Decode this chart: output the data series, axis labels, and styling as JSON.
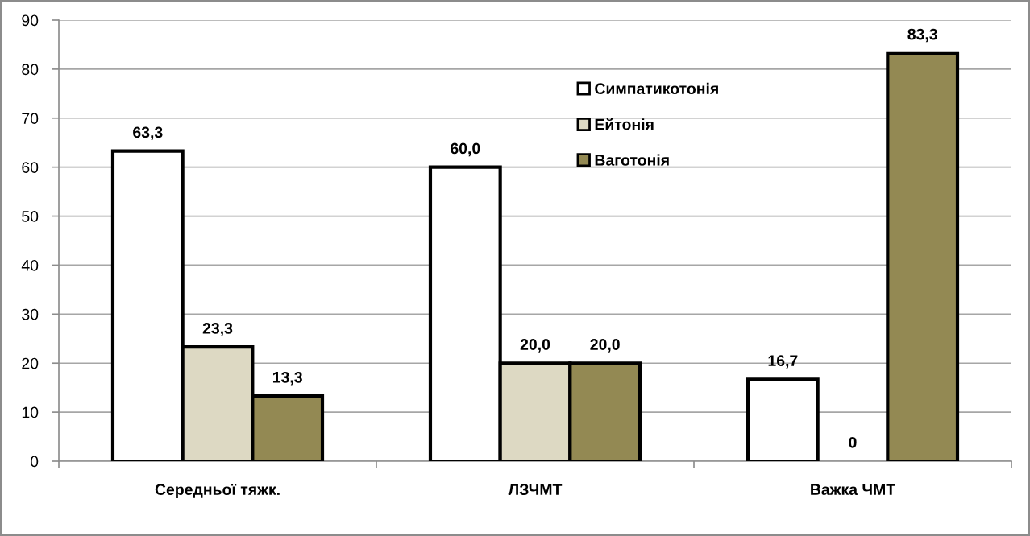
{
  "chart_data": {
    "type": "bar",
    "categories": [
      "Середньої тяжк.",
      "ЛЗЧМТ",
      "Важка ЧМТ"
    ],
    "series": [
      {
        "name": "Симпатикотонія",
        "color": "#ffffff",
        "values": [
          63.3,
          60.0,
          16.7
        ],
        "value_labels": [
          "63,3",
          "60,0",
          "16,7"
        ]
      },
      {
        "name": "Ейтонія",
        "color": "#ddd9c3",
        "values": [
          23.3,
          20.0,
          0
        ],
        "value_labels": [
          "23,3",
          "20,0",
          "0"
        ]
      },
      {
        "name": "Ваготонія",
        "color": "#938953",
        "values": [
          13.3,
          20.0,
          83.3
        ],
        "value_labels": [
          "13,3",
          "20,0",
          "83,3"
        ]
      }
    ],
    "ylim": [
      0,
      90
    ],
    "yticks": [
      0,
      10,
      20,
      30,
      40,
      50,
      60,
      70,
      80,
      90
    ],
    "grid": "y",
    "legend": "top"
  }
}
